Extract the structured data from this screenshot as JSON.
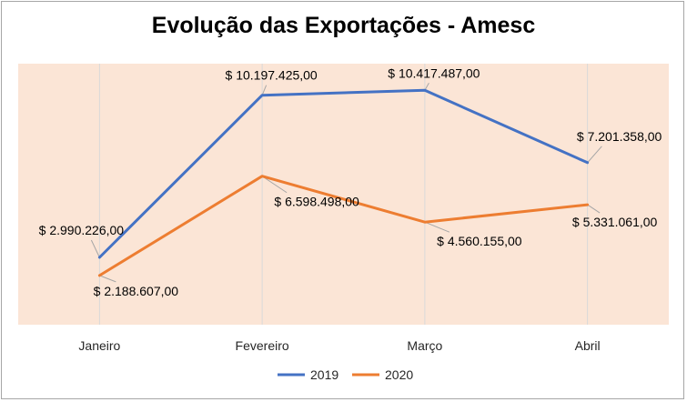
{
  "chart_data": {
    "type": "line",
    "title": "Evolução das Exportações - Amesc",
    "categories": [
      "Janeiro",
      "Fevereiro",
      "Março",
      "Abril"
    ],
    "series": [
      {
        "name": "2019",
        "color": "#4472c4",
        "values": [
          2990226.0,
          10197425.0,
          10417487.0,
          7201358.0
        ],
        "labels": [
          "$ 2.990.226,00",
          "$ 10.197.425,00",
          "$ 10.417.487,00",
          "$ 7.201.358,00"
        ]
      },
      {
        "name": "2020",
        "color": "#ed7d31",
        "values": [
          2188607.0,
          6598498.0,
          4560155.0,
          5331061.0
        ],
        "labels": [
          "$ 2.188.607,00",
          "$ 6.598.498,00",
          "$ 4.560.155,00",
          "$ 5.331.061,00"
        ]
      }
    ],
    "ylim": [
      0,
      11600000
    ],
    "plot_background": "#fbe5d6",
    "legend_position": "bottom",
    "grid": "vertical"
  }
}
